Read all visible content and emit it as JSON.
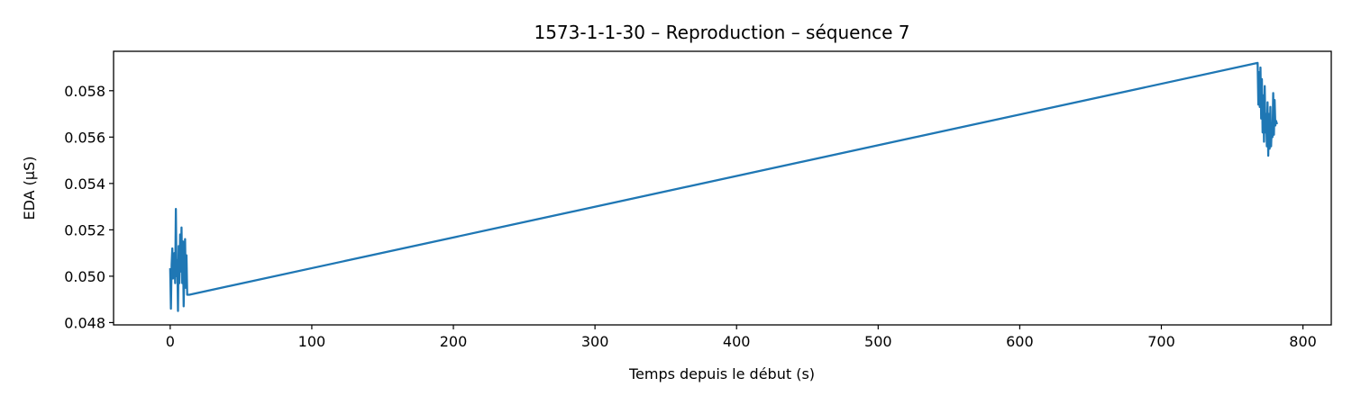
{
  "chart_data": {
    "type": "line",
    "title": "1573-1-1-30 – Reproduction – séquence 7",
    "xlabel": "Temps depuis le début (s)",
    "ylabel": "EDA (µS)",
    "xlim": [
      -40,
      820
    ],
    "ylim": [
      0.0479,
      0.0597
    ],
    "x_ticks": [
      0,
      100,
      200,
      300,
      400,
      500,
      600,
      700,
      800
    ],
    "x_tick_labels": [
      "0",
      "100",
      "200",
      "300",
      "400",
      "500",
      "600",
      "700",
      "800"
    ],
    "y_ticks": [
      0.048,
      0.05,
      0.052,
      0.054,
      0.056,
      0.058
    ],
    "y_tick_labels": [
      "0.048",
      "0.050",
      "0.052",
      "0.054",
      "0.056",
      "0.058"
    ],
    "grid": false,
    "legend": "none",
    "series": [
      {
        "color": "#1f77b4",
        "x": [
          0.0,
          0.5,
          1.0,
          1.5,
          2.0,
          2.5,
          3.0,
          3.5,
          4.0,
          4.5,
          5.0,
          5.5,
          6.0,
          6.5,
          7.0,
          7.5,
          8.0,
          8.5,
          9.0,
          9.5,
          10.0,
          10.5,
          11.0,
          11.5,
          12.0,
          12.5,
          13.0,
          13.5,
          768.0,
          768.5,
          769.0,
          769.5,
          770.0,
          770.5,
          771.0,
          771.5,
          772.0,
          772.5,
          773.0,
          773.5,
          774.0,
          774.5,
          775.0,
          775.5,
          776.0,
          776.5,
          777.0,
          777.5,
          778.0,
          778.5,
          779.0,
          779.5,
          780.0,
          780.5,
          781.0,
          781.5
        ],
        "y": [
          0.0503,
          0.0486,
          0.0505,
          0.0512,
          0.0499,
          0.0503,
          0.051,
          0.0497,
          0.0529,
          0.05,
          0.0507,
          0.0485,
          0.0513,
          0.0497,
          0.0518,
          0.0502,
          0.0521,
          0.0497,
          0.0515,
          0.0487,
          0.0504,
          0.0516,
          0.0495,
          0.0509,
          0.0492,
          0.0492,
          0.0492,
          0.0492,
          0.0592,
          0.0574,
          0.0588,
          0.0573,
          0.059,
          0.0568,
          0.0585,
          0.0562,
          0.0578,
          0.0558,
          0.0582,
          0.0562,
          0.057,
          0.0556,
          0.0575,
          0.0552,
          0.057,
          0.0555,
          0.0573,
          0.0556,
          0.0565,
          0.056,
          0.0579,
          0.0561,
          0.0576,
          0.0565,
          0.0567,
          0.0566
        ]
      }
    ]
  }
}
